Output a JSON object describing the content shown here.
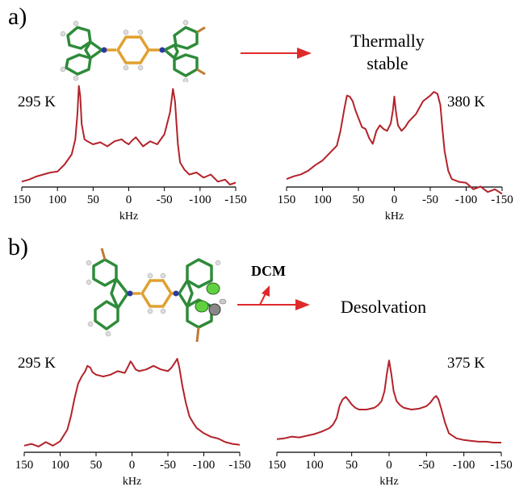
{
  "panels": [
    {
      "label": "a)",
      "caption_line1": "Thermally",
      "caption_line2": "stable",
      "left_temp": "295 K",
      "right_temp": "380 K"
    },
    {
      "label": "b)",
      "caption_line1": "Desolvation",
      "left_temp": "295 K",
      "right_temp": "375 K",
      "arrow_label": "DCM"
    }
  ],
  "colors": {
    "spectrum": "#b3232a",
    "arrow": "#e02a2a",
    "ring": "#2e8b3a",
    "linker": "#e0a030",
    "nitrogen": "#2a3aa0",
    "chlorine": "#5fd040"
  },
  "chart_data": [
    {
      "type": "line",
      "xlabel": "kHz",
      "xlim": [
        150,
        -150
      ],
      "x_ticks": [
        "150",
        "100",
        "50",
        "0",
        "-50",
        "-100",
        "-150"
      ],
      "x": [
        150,
        140,
        130,
        120,
        110,
        100,
        90,
        80,
        75,
        72,
        70,
        68,
        66,
        62,
        58,
        50,
        40,
        30,
        20,
        10,
        5,
        0,
        -5,
        -10,
        -20,
        -30,
        -40,
        -50,
        -58,
        -62,
        -65,
        -67,
        -69,
        -72,
        -78,
        -85,
        -95,
        -105,
        -115,
        -125,
        -135,
        -142,
        -150
      ],
      "y": [
        0.03,
        0.05,
        0.08,
        0.1,
        0.12,
        0.13,
        0.2,
        0.3,
        0.45,
        0.7,
        0.98,
        0.88,
        0.6,
        0.45,
        0.43,
        0.4,
        0.42,
        0.38,
        0.43,
        0.45,
        0.42,
        0.4,
        0.44,
        0.47,
        0.38,
        0.43,
        0.4,
        0.5,
        0.72,
        0.95,
        0.82,
        0.6,
        0.4,
        0.22,
        0.15,
        0.1,
        0.12,
        0.07,
        0.1,
        0.03,
        0.05,
        0.0,
        0.02
      ]
    },
    {
      "type": "line",
      "xlabel": "kHz",
      "xlim": [
        150,
        -150
      ],
      "x_ticks": [
        "150",
        "100",
        "50",
        "0",
        "-50",
        "-100",
        "-150"
      ],
      "x": [
        150,
        140,
        130,
        120,
        110,
        100,
        90,
        80,
        75,
        70,
        66,
        62,
        58,
        54,
        50,
        45,
        40,
        35,
        30,
        25,
        20,
        15,
        10,
        5,
        2,
        0,
        -2,
        -5,
        -10,
        -15,
        -20,
        -30,
        -40,
        -50,
        -55,
        -60,
        -64,
        -67,
        -70,
        -75,
        -80,
        -90,
        -100,
        -110,
        -120,
        -130,
        -140,
        -150
      ],
      "y": [
        0.06,
        0.09,
        0.11,
        0.15,
        0.21,
        0.26,
        0.34,
        0.42,
        0.58,
        0.8,
        0.96,
        0.95,
        0.9,
        0.8,
        0.72,
        0.62,
        0.6,
        0.5,
        0.44,
        0.58,
        0.64,
        0.6,
        0.58,
        0.66,
        0.8,
        0.95,
        0.8,
        0.64,
        0.58,
        0.62,
        0.68,
        0.76,
        0.9,
        0.96,
        1.0,
        0.98,
        0.86,
        0.6,
        0.36,
        0.15,
        0.06,
        0.03,
        0.02,
        -0.05,
        -0.02,
        -0.08,
        -0.05,
        -0.1
      ]
    },
    {
      "type": "line",
      "xlabel": "kHz",
      "xlim": [
        150,
        -150
      ],
      "x_ticks": [
        "150",
        "100",
        "50",
        "0",
        "-50",
        "-100",
        "-150"
      ],
      "x": [
        150,
        140,
        130,
        120,
        110,
        100,
        90,
        85,
        80,
        75,
        70,
        65,
        62,
        58,
        55,
        50,
        40,
        30,
        20,
        10,
        5,
        2,
        0,
        -5,
        -10,
        -20,
        -30,
        -40,
        -50,
        -55,
        -60,
        -63,
        -66,
        -70,
        -75,
        -80,
        -85,
        -90,
        -100,
        -110,
        -120,
        -130,
        -140,
        -150
      ],
      "y": [
        0.02,
        0.04,
        0.01,
        0.06,
        0.02,
        0.07,
        0.2,
        0.35,
        0.55,
        0.72,
        0.8,
        0.86,
        0.92,
        0.9,
        0.85,
        0.82,
        0.8,
        0.82,
        0.86,
        0.84,
        0.92,
        0.97,
        0.95,
        0.88,
        0.86,
        0.88,
        0.92,
        0.88,
        0.86,
        0.9,
        0.96,
        1.0,
        0.9,
        0.7,
        0.5,
        0.35,
        0.28,
        0.22,
        0.16,
        0.12,
        0.1,
        0.06,
        0.04,
        0.03
      ]
    },
    {
      "type": "line",
      "xlabel": "kHz",
      "xlim": [
        150,
        -150
      ],
      "x_ticks": [
        "150",
        "100",
        "50",
        "0",
        "-50",
        "-100",
        "-150"
      ],
      "x": [
        150,
        140,
        130,
        120,
        110,
        100,
        90,
        80,
        75,
        70,
        66,
        62,
        58,
        55,
        50,
        45,
        40,
        30,
        20,
        15,
        10,
        6,
        3,
        0,
        -3,
        -6,
        -10,
        -15,
        -20,
        -30,
        -40,
        -50,
        -55,
        -60,
        -63,
        -66,
        -70,
        -75,
        -80,
        -90,
        -100,
        -110,
        -120,
        -130,
        -140,
        -150
      ],
      "y": [
        0.05,
        0.06,
        0.08,
        0.07,
        0.09,
        0.11,
        0.14,
        0.18,
        0.22,
        0.3,
        0.45,
        0.52,
        0.55,
        0.52,
        0.46,
        0.42,
        0.4,
        0.4,
        0.42,
        0.45,
        0.5,
        0.62,
        0.82,
        0.98,
        0.82,
        0.62,
        0.5,
        0.45,
        0.42,
        0.4,
        0.41,
        0.44,
        0.48,
        0.54,
        0.56,
        0.52,
        0.4,
        0.24,
        0.12,
        0.06,
        0.04,
        0.03,
        0.02,
        0.02,
        0.01,
        0.01
      ]
    }
  ]
}
